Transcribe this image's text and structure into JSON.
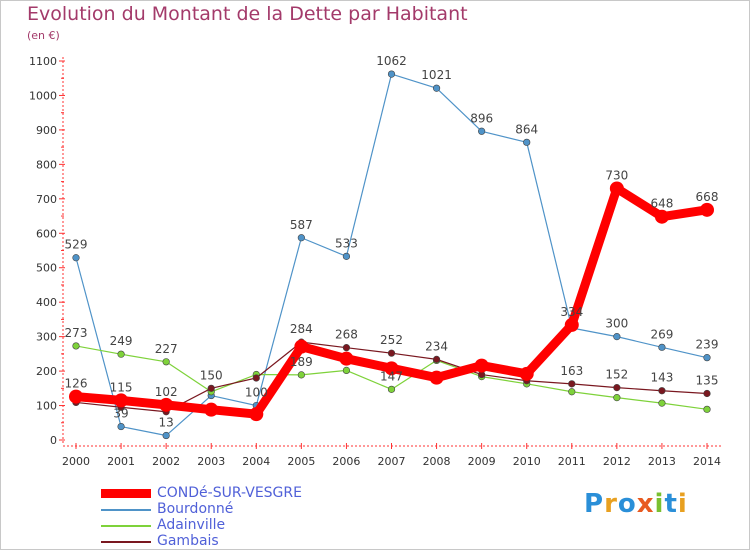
{
  "title": "Evolution du Montant de la Dette par Habitant",
  "subtitle": "(en €)",
  "logo": {
    "text": "Proxiti",
    "letter_colors": [
      "#2a8fd8",
      "#e8a020",
      "#2a8fd8",
      "#e85a20",
      "#7ac030",
      "#2a8fd8",
      "#e8a020"
    ]
  },
  "chart_data": {
    "type": "line",
    "x": [
      "2000",
      "2001",
      "2002",
      "2003",
      "2004",
      "2005",
      "2006",
      "2007",
      "2008",
      "2009",
      "2010",
      "2011",
      "2012",
      "2013",
      "2014"
    ],
    "ylim": [
      0,
      1100
    ],
    "yticks": [
      0,
      100,
      200,
      300,
      400,
      500,
      600,
      700,
      800,
      900,
      1000,
      1100
    ],
    "grid": false,
    "legend_position": "bottom-left",
    "series": [
      {
        "name": "CONDé-SUR-VESGRE",
        "color": "#ff0000",
        "values": [
          126,
          115,
          102,
          88,
          75,
          271,
          236,
          208,
          181,
          216,
          192,
          334,
          730,
          648,
          668
        ],
        "labels": [
          "126",
          "115",
          "102",
          "",
          "",
          "",
          "",
          "",
          "",
          "",
          "",
          "334",
          "730",
          "648",
          "668"
        ]
      },
      {
        "name": "Bourdonné",
        "color": "#4f93c8",
        "values": [
          529,
          39,
          13,
          129,
          100,
          587,
          533,
          1062,
          1021,
          896,
          864,
          325,
          300,
          269,
          239
        ],
        "labels": [
          "529",
          "39",
          "13",
          "",
          "100",
          "587",
          "533",
          "1062",
          "1021",
          "896",
          "864",
          "",
          "300",
          "269",
          "239"
        ]
      },
      {
        "name": "Adainville",
        "color": "#7ed23a",
        "values": [
          273,
          249,
          227,
          140,
          190,
          189,
          202,
          147,
          231,
          184,
          163,
          140,
          123,
          107,
          89
        ],
        "labels": [
          "273",
          "249",
          "227",
          "",
          "",
          "189",
          "",
          "147",
          "",
          "",
          "",
          "",
          "",
          "",
          ""
        ]
      },
      {
        "name": "Gambais",
        "color": "#7a1820",
        "values": [
          109,
          95,
          82,
          150,
          180,
          284,
          268,
          252,
          234,
          190,
          172,
          163,
          152,
          143,
          135
        ],
        "labels": [
          "",
          "",
          "",
          "150",
          "",
          "284",
          "268",
          "252",
          "234",
          "",
          "",
          "163",
          "152",
          "143",
          "135"
        ]
      }
    ]
  }
}
